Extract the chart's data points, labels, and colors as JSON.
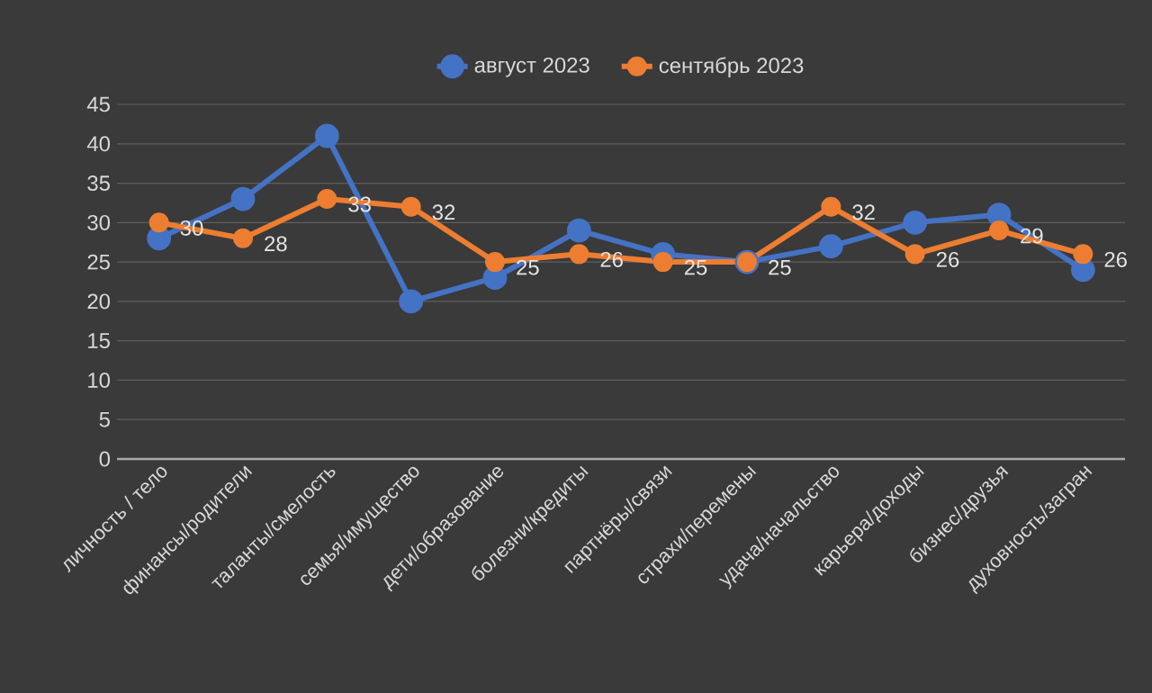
{
  "chart_data": {
    "type": "line",
    "categories": [
      "личность / тело",
      "финансы/родители",
      "таланты/смелость",
      "семья/имущество",
      "дети/образование",
      "болезни/кредиты",
      "партнёры/связи",
      "страхи/перемены",
      "удача/начальство",
      "карьера/доходы",
      "бизнес/друзья",
      "духовность/загран"
    ],
    "series": [
      {
        "name": "август 2023",
        "color": "#4472c4",
        "values": [
          28,
          33,
          41,
          20,
          23,
          29,
          26,
          25,
          27,
          30,
          31,
          24
        ]
      },
      {
        "name": "сентябрь 2023",
        "color": "#ed7d31",
        "values": [
          30,
          28,
          33,
          32,
          25,
          26,
          25,
          25,
          32,
          26,
          29,
          26
        ],
        "value_labels": [
          "30",
          "28",
          "33",
          "32",
          "25",
          "26",
          "25",
          "25",
          "32",
          "26",
          "29",
          "26"
        ]
      }
    ],
    "ylim": [
      0,
      45
    ],
    "yticks": [
      0,
      5,
      10,
      15,
      20,
      25,
      30,
      35,
      40,
      45
    ],
    "grid": "y",
    "legend": "top",
    "marker": "circle",
    "line_style": "solid"
  }
}
